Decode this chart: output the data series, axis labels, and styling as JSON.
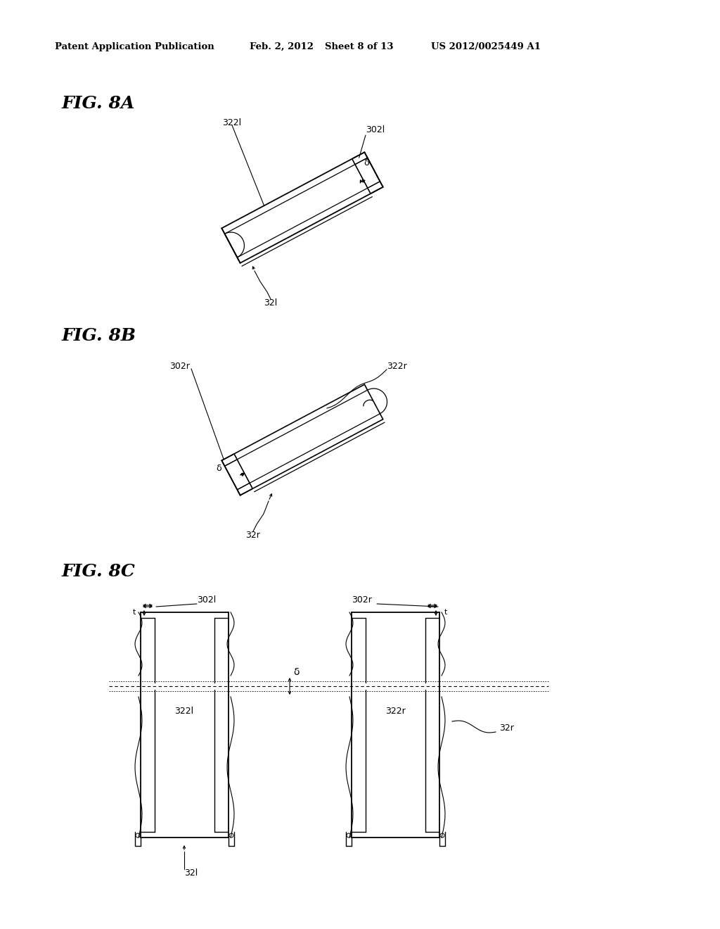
{
  "bg_color": "#ffffff",
  "header_text": "Patent Application Publication",
  "header_date": "Feb. 2, 2012",
  "header_sheet": "Sheet 8 of 13",
  "header_patent": "US 2012/0025449 A1",
  "fig8a_label": "FIG. 8A",
  "fig8b_label": "FIG. 8B",
  "fig8c_label": "FIG. 8C",
  "label_322l": "322l",
  "label_302l": "302l",
  "label_32l": "32l",
  "label_delta": "δ",
  "label_302r": "302r",
  "label_322r": "322r",
  "label_32r": "32r",
  "label_321_8c": "32l",
  "label_t": "t",
  "line_color": "#000000",
  "text_color": "#000000"
}
